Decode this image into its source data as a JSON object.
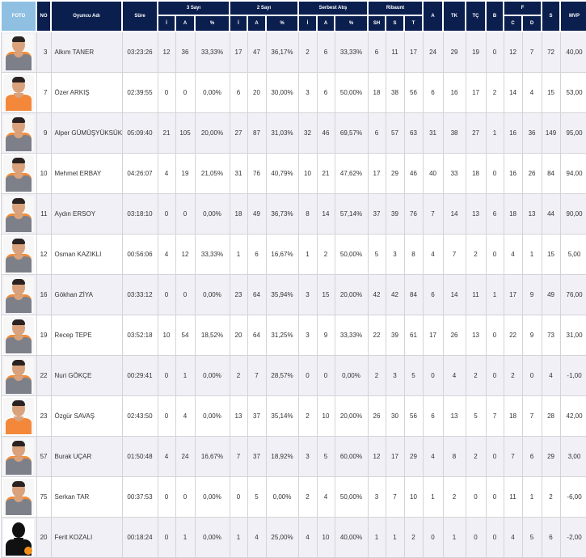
{
  "header": {
    "foto": "FOTO",
    "no": "NO",
    "name": "Oyuncu Adı",
    "time": "Süre",
    "three": "3 Sayı",
    "two": "2 Sayı",
    "ft": "Serbest Atış",
    "reb": "Ribaunt",
    "a": "A",
    "tk": "TK",
    "tc": "TÇ",
    "b": "B",
    "f": "F",
    "s": "S",
    "mvp": "MVP",
    "sub_i": "İ",
    "sub_a": "A",
    "sub_pct": "%",
    "sub_sh": "SH",
    "sub_s": "S",
    "sub_t": "T",
    "sub_c": "C",
    "sub_d": "D"
  },
  "players": [
    {
      "photo": "grey",
      "no": "3",
      "name": "Alkım TANER",
      "time": "03:23:26",
      "p3i": "12",
      "p3a": "36",
      "p3p": "33,33%",
      "p2i": "17",
      "p2a": "47",
      "p2p": "36,17%",
      "fti": "2",
      "fta": "6",
      "ftp": "33,33%",
      "sh": "6",
      "rs": "11",
      "rt": "17",
      "a": "24",
      "tk": "29",
      "tc": "19",
      "b": "0",
      "fc": "12",
      "fd": "7",
      "s": "72",
      "mvp": "40,00"
    },
    {
      "photo": "orange",
      "no": "7",
      "name": "Özer ARKIŞ",
      "time": "02:39:55",
      "p3i": "0",
      "p3a": "0",
      "p3p": "0,00%",
      "p2i": "6",
      "p2a": "20",
      "p2p": "30,00%",
      "fti": "3",
      "fta": "6",
      "ftp": "50,00%",
      "sh": "18",
      "rs": "38",
      "rt": "56",
      "a": "6",
      "tk": "16",
      "tc": "17",
      "b": "2",
      "fc": "14",
      "fd": "4",
      "s": "15",
      "mvp": "53,00"
    },
    {
      "photo": "grey",
      "no": "9",
      "name": "Alper GÜMÜŞYÜKSÜK",
      "time": "05:09:40",
      "p3i": "21",
      "p3a": "105",
      "p3p": "20,00%",
      "p2i": "27",
      "p2a": "87",
      "p2p": "31,03%",
      "fti": "32",
      "fta": "46",
      "ftp": "69,57%",
      "sh": "6",
      "rs": "57",
      "rt": "63",
      "a": "31",
      "tk": "38",
      "tc": "27",
      "b": "1",
      "fc": "16",
      "fd": "36",
      "s": "149",
      "mvp": "95,00"
    },
    {
      "photo": "grey",
      "no": "10",
      "name": "Mehmet ERBAY",
      "time": "04:26:07",
      "p3i": "4",
      "p3a": "19",
      "p3p": "21,05%",
      "p2i": "31",
      "p2a": "76",
      "p2p": "40,79%",
      "fti": "10",
      "fta": "21",
      "ftp": "47,62%",
      "sh": "17",
      "rs": "29",
      "rt": "46",
      "a": "40",
      "tk": "33",
      "tc": "18",
      "b": "0",
      "fc": "16",
      "fd": "26",
      "s": "84",
      "mvp": "94,00"
    },
    {
      "photo": "grey",
      "no": "11",
      "name": "Aydın ERSOY",
      "time": "03:18:10",
      "p3i": "0",
      "p3a": "0",
      "p3p": "0,00%",
      "p2i": "18",
      "p2a": "49",
      "p2p": "36,73%",
      "fti": "8",
      "fta": "14",
      "ftp": "57,14%",
      "sh": "37",
      "rs": "39",
      "rt": "76",
      "a": "7",
      "tk": "14",
      "tc": "13",
      "b": "6",
      "fc": "18",
      "fd": "13",
      "s": "44",
      "mvp": "90,00"
    },
    {
      "photo": "grey",
      "no": "12",
      "name": "Osman KAZIKLI",
      "time": "00:56:06",
      "p3i": "4",
      "p3a": "12",
      "p3p": "33,33%",
      "p2i": "1",
      "p2a": "6",
      "p2p": "16,67%",
      "fti": "1",
      "fta": "2",
      "ftp": "50,00%",
      "sh": "5",
      "rs": "3",
      "rt": "8",
      "a": "4",
      "tk": "7",
      "tc": "2",
      "b": "0",
      "fc": "4",
      "fd": "1",
      "s": "15",
      "mvp": "5,00"
    },
    {
      "photo": "grey",
      "no": "16",
      "name": "Gökhan ZİYA",
      "time": "03:33:12",
      "p3i": "0",
      "p3a": "0",
      "p3p": "0,00%",
      "p2i": "23",
      "p2a": "64",
      "p2p": "35,94%",
      "fti": "3",
      "fta": "15",
      "ftp": "20,00%",
      "sh": "42",
      "rs": "42",
      "rt": "84",
      "a": "6",
      "tk": "14",
      "tc": "11",
      "b": "1",
      "fc": "17",
      "fd": "9",
      "s": "49",
      "mvp": "76,00"
    },
    {
      "photo": "grey",
      "no": "19",
      "name": "Recep TEPE",
      "time": "03:52:18",
      "p3i": "10",
      "p3a": "54",
      "p3p": "18,52%",
      "p2i": "20",
      "p2a": "64",
      "p2p": "31,25%",
      "fti": "3",
      "fta": "9",
      "ftp": "33,33%",
      "sh": "22",
      "rs": "39",
      "rt": "61",
      "a": "17",
      "tk": "26",
      "tc": "13",
      "b": "0",
      "fc": "22",
      "fd": "9",
      "s": "73",
      "mvp": "31,00"
    },
    {
      "photo": "grey",
      "no": "22",
      "name": "Nuri GÖKÇE",
      "time": "00:29:41",
      "p3i": "0",
      "p3a": "1",
      "p3p": "0,00%",
      "p2i": "2",
      "p2a": "7",
      "p2p": "28,57%",
      "fti": "0",
      "fta": "0",
      "ftp": "0,00%",
      "sh": "2",
      "rs": "3",
      "rt": "5",
      "a": "0",
      "tk": "4",
      "tc": "2",
      "b": "0",
      "fc": "2",
      "fd": "0",
      "s": "4",
      "mvp": "-1,00"
    },
    {
      "photo": "orange",
      "no": "23",
      "name": "Özgür SAVAŞ",
      "time": "02:43:50",
      "p3i": "0",
      "p3a": "4",
      "p3p": "0,00%",
      "p2i": "13",
      "p2a": "37",
      "p2p": "35,14%",
      "fti": "2",
      "fta": "10",
      "ftp": "20,00%",
      "sh": "26",
      "rs": "30",
      "rt": "56",
      "a": "6",
      "tk": "13",
      "tc": "5",
      "b": "7",
      "fc": "18",
      "fd": "7",
      "s": "28",
      "mvp": "42,00"
    },
    {
      "photo": "grey",
      "no": "57",
      "name": "Burak UÇAR",
      "time": "01:50:48",
      "p3i": "4",
      "p3a": "24",
      "p3p": "16,67%",
      "p2i": "7",
      "p2a": "37",
      "p2p": "18,92%",
      "fti": "3",
      "fta": "5",
      "ftp": "60,00%",
      "sh": "12",
      "rs": "17",
      "rt": "29",
      "a": "4",
      "tk": "8",
      "tc": "2",
      "b": "0",
      "fc": "7",
      "fd": "6",
      "s": "29",
      "mvp": "3,00"
    },
    {
      "photo": "grey",
      "no": "75",
      "name": "Serkan TAR",
      "time": "00:37:53",
      "p3i": "0",
      "p3a": "0",
      "p3p": "0,00%",
      "p2i": "0",
      "p2a": "5",
      "p2p": "0,00%",
      "fti": "2",
      "fta": "4",
      "ftp": "50,00%",
      "sh": "3",
      "rs": "7",
      "rt": "10",
      "a": "1",
      "tk": "2",
      "tc": "0",
      "b": "0",
      "fc": "11",
      "fd": "1",
      "s": "2",
      "mvp": "-6,00"
    },
    {
      "photo": "silhouette",
      "no": "20",
      "name": "Ferit KOZALI",
      "time": "00:18:24",
      "p3i": "0",
      "p3a": "1",
      "p3p": "0,00%",
      "p2i": "1",
      "p2a": "4",
      "p2p": "25,00%",
      "fti": "4",
      "fta": "10",
      "ftp": "40,00%",
      "sh": "1",
      "rs": "1",
      "rt": "2",
      "a": "0",
      "tk": "1",
      "tc": "0",
      "b": "0",
      "fc": "4",
      "fd": "5",
      "s": "6",
      "mvp": "-2,00"
    }
  ]
}
